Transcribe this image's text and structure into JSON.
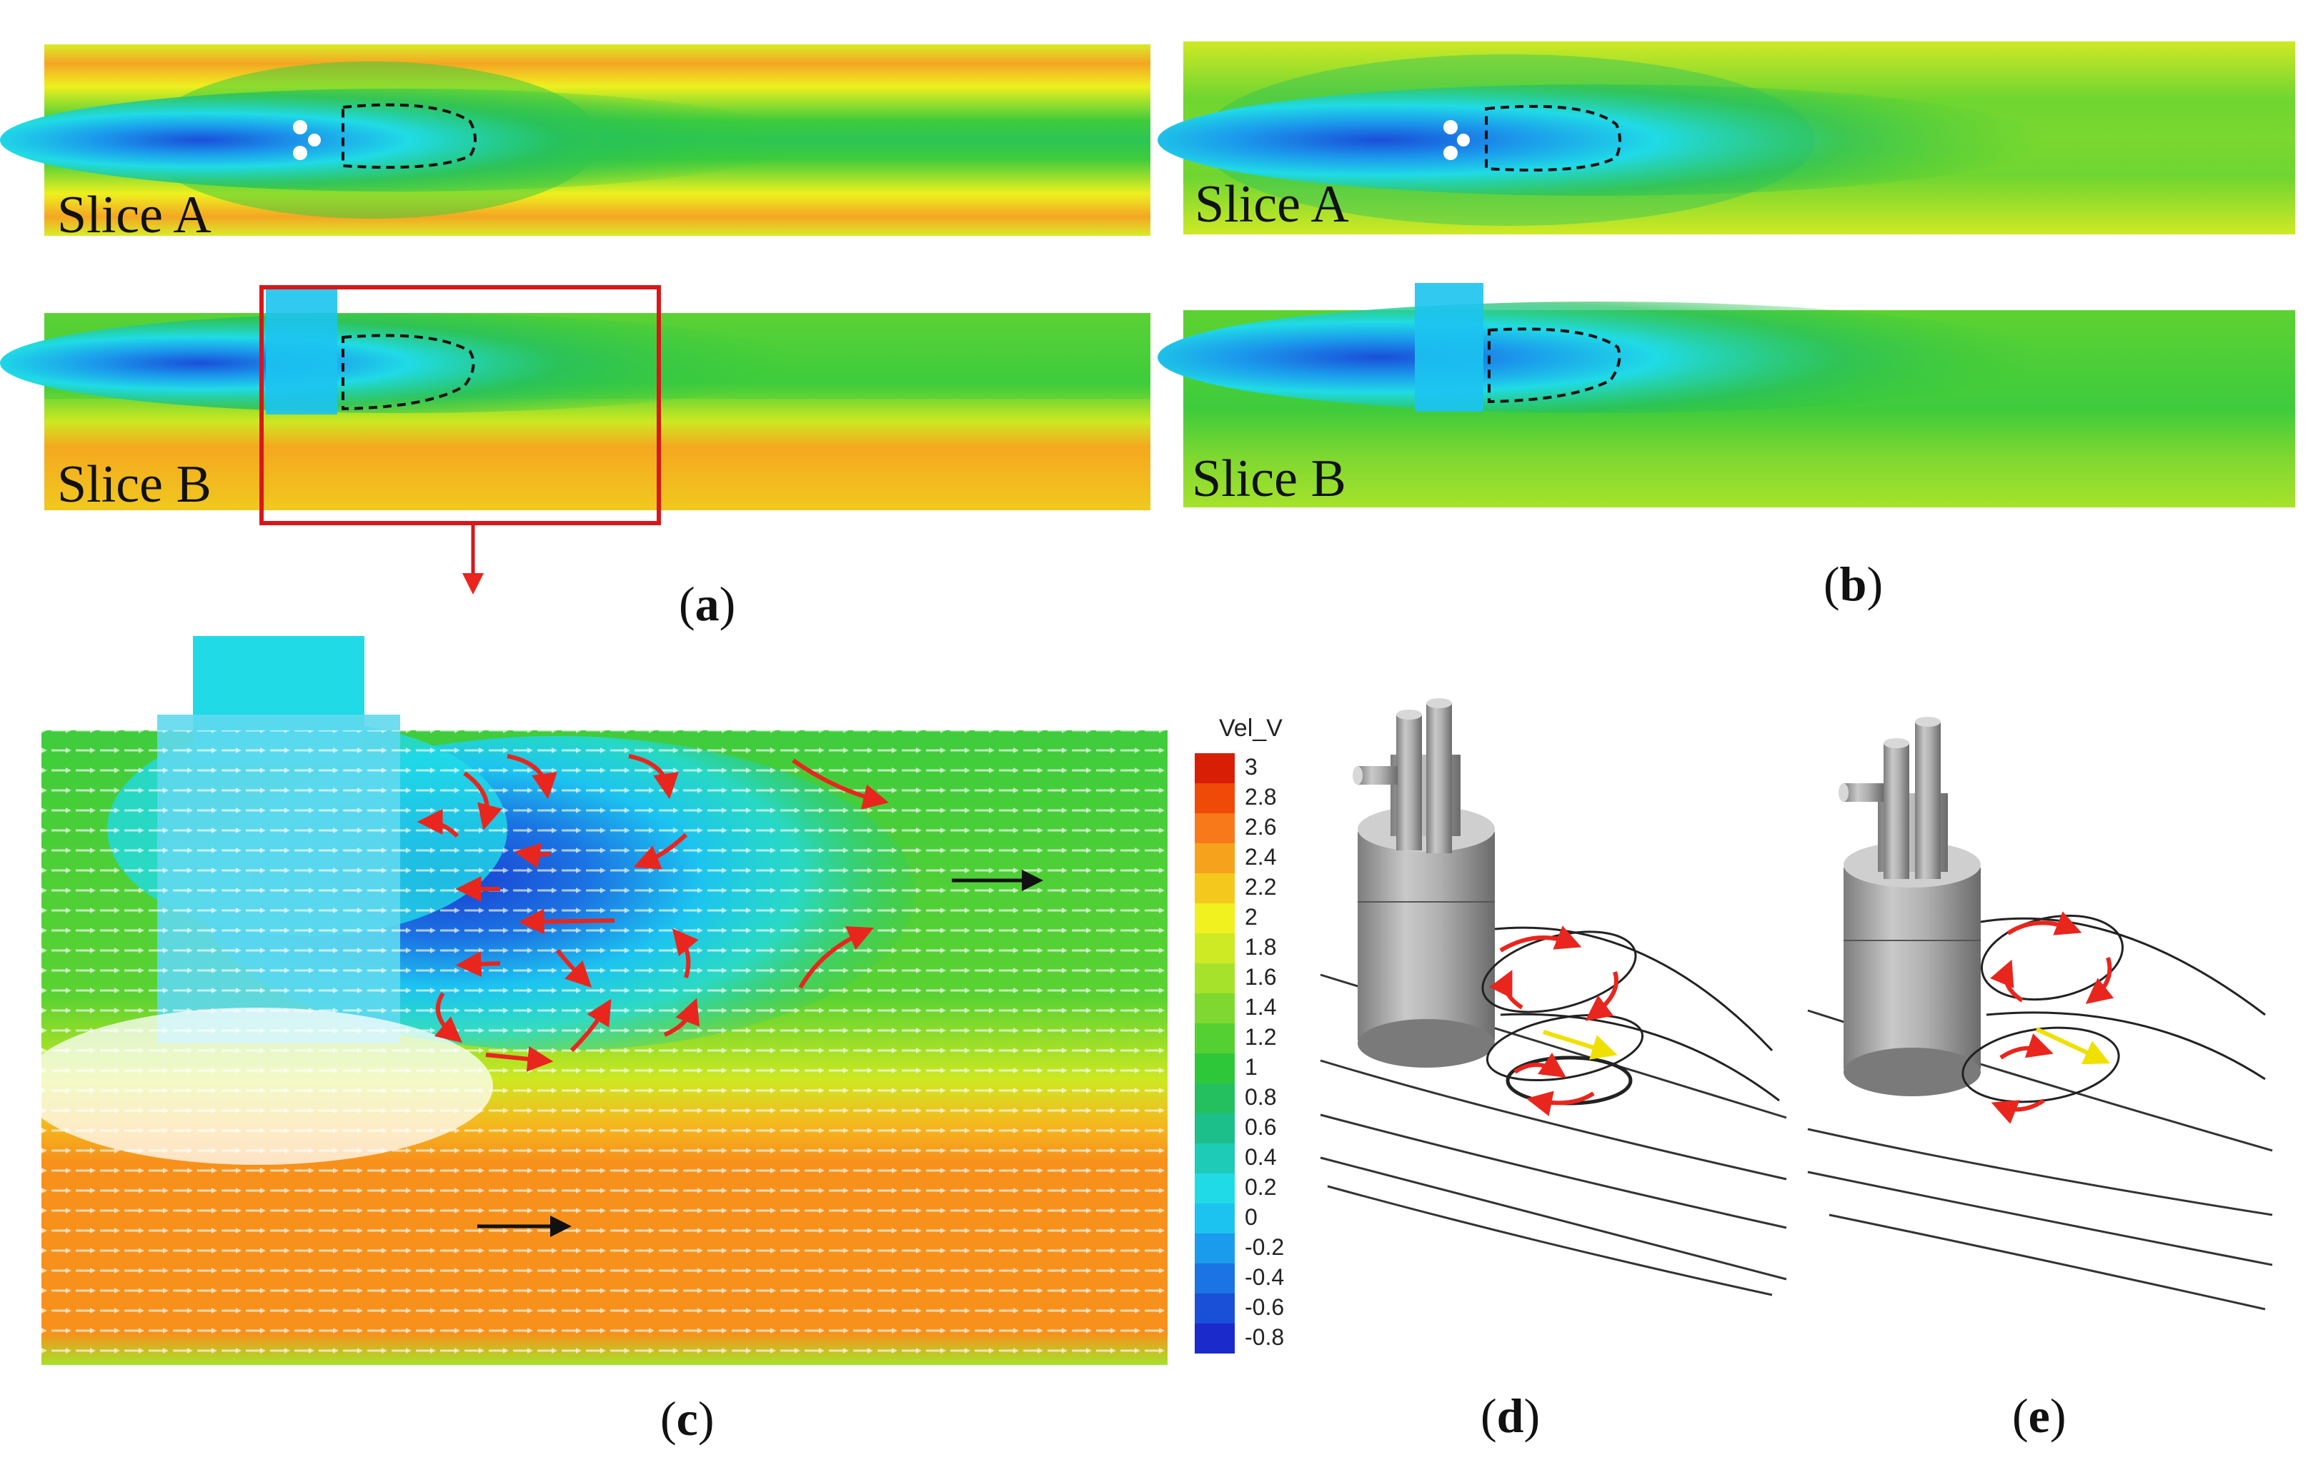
{
  "panels": {
    "a": {
      "caption_letter": "a",
      "slice_labels": [
        "Slice A",
        "Slice B"
      ]
    },
    "b": {
      "caption_letter": "b",
      "slice_labels": [
        "Slice A",
        "Slice B"
      ]
    },
    "c": {
      "caption_letter": "c"
    },
    "d": {
      "caption_letter": "d"
    },
    "e": {
      "caption_letter": "e"
    }
  },
  "legend": {
    "title": "Vel_V",
    "ticks": [
      "3",
      "2.8",
      "2.6",
      "2.4",
      "2.2",
      "2",
      "1.8",
      "1.6",
      "1.4",
      "1.2",
      "1",
      "0.8",
      "0.6",
      "0.4",
      "0.2",
      "0",
      "-0.2",
      "-0.4",
      "-0.6",
      "-0.8"
    ],
    "colors": [
      "#d81e05",
      "#f04a08",
      "#f7791a",
      "#f7a21c",
      "#f5c81d",
      "#eff21f",
      "#cdea24",
      "#a6e22b",
      "#7fd830",
      "#55d032",
      "#2fc73a",
      "#24c060",
      "#1cbf8a",
      "#1ecbb7",
      "#20dbe6",
      "#1cc3f0",
      "#1b9bec",
      "#1b74e3",
      "#1a4fd8",
      "#1a2acb"
    ]
  },
  "colors": {
    "highlight_box": "#d8171b",
    "flow_arrow": "#e8261d",
    "main_flow_arrow": "#111111",
    "recirculation_contour": "#111111",
    "streamline": "#333333",
    "yellow_arrow": "#f0e000",
    "injector_body": "#9a9a9a"
  }
}
